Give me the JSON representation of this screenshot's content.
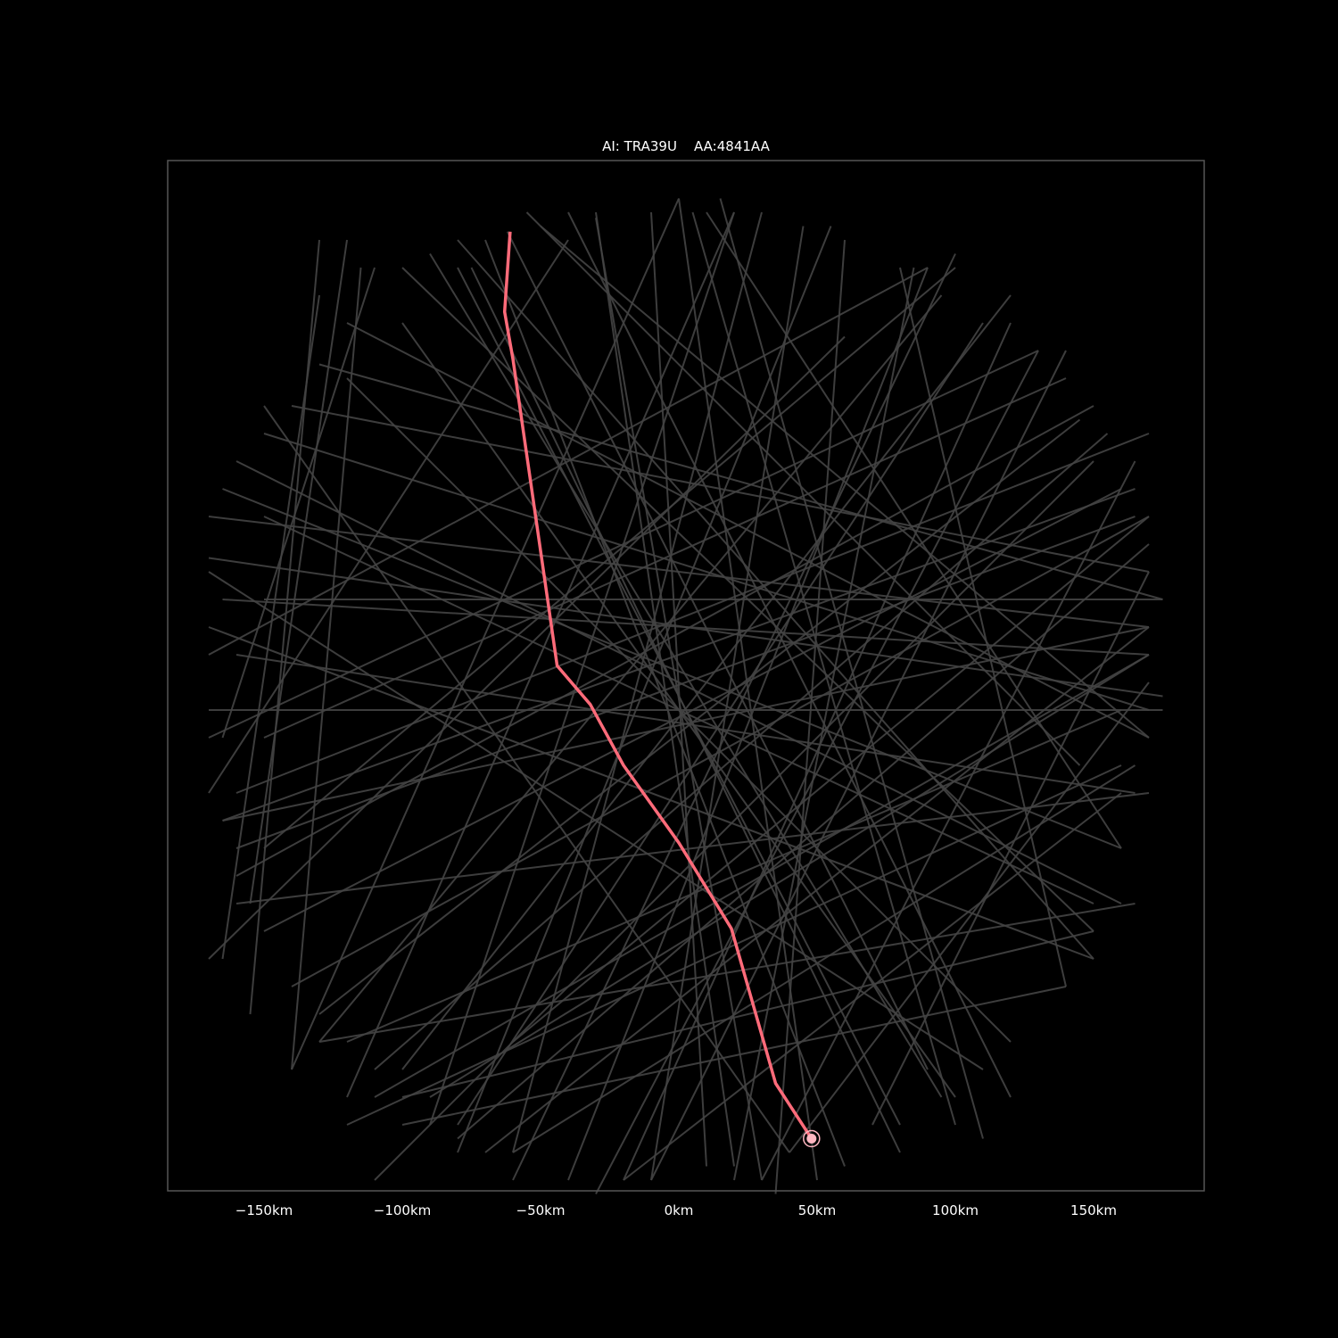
{
  "chart_data": {
    "type": "line",
    "title": "AI: TRA39U    AA:4841AA",
    "xlabel": "",
    "ylabel": "",
    "xlim": [
      -190,
      190
    ],
    "ylim": [
      -190,
      190
    ],
    "x_ticks": [
      {
        "value": -150,
        "label": "−150km"
      },
      {
        "value": -100,
        "label": "−100km"
      },
      {
        "value": -50,
        "label": "−50km"
      },
      {
        "value": 0,
        "label": "0km"
      },
      {
        "value": 50,
        "label": "50km"
      },
      {
        "value": 100,
        "label": "100km"
      },
      {
        "value": 150,
        "label": "150km"
      }
    ],
    "background_color": "#000000",
    "frame_color": "#555555",
    "other_tracks_color": "#444444",
    "highlight_color": "#ff6b7a",
    "marker_color": "#ffb6c1",
    "highlight_track": {
      "x": [
        -61,
        -63,
        -60,
        -44,
        -32,
        -20,
        0,
        19,
        35,
        48
      ],
      "y": [
        163,
        134,
        117,
        6,
        -8,
        -30,
        -58,
        -89,
        -145,
        -165
      ]
    },
    "current_position": {
      "x": 48,
      "y": -165
    },
    "other_tracks": [
      {
        "x": [
          -62,
          90
        ],
        "y": [
          163,
          -140
        ]
      },
      {
        "x": [
          -140,
          170
        ],
        "y": [
          100,
          40
        ]
      },
      {
        "x": [
          -150,
          175
        ],
        "y": [
          30,
          30
        ]
      },
      {
        "x": [
          -170,
          60
        ],
        "y": [
          -100,
          125
        ]
      },
      {
        "x": [
          -90,
          95
        ],
        "y": [
          155,
          -150
        ]
      },
      {
        "x": [
          -160,
          170
        ],
        "y": [
          -40,
          90
        ]
      },
      {
        "x": [
          -110,
          150
        ],
        "y": [
          -180,
          80
        ]
      },
      {
        "x": [
          -120,
          160
        ],
        "y": [
          -160,
          -30
        ]
      },
      {
        "x": [
          -100,
          100
        ],
        "y": [
          130,
          -150
        ]
      },
      {
        "x": [
          -10,
          10
        ],
        "y": [
          170,
          -175
        ]
      },
      {
        "x": [
          30,
          -60
        ],
        "y": [
          170,
          -170
        ]
      },
      {
        "x": [
          95,
          -130
        ],
        "y": [
          140,
          -130
        ]
      },
      {
        "x": [
          140,
          -150
        ],
        "y": [
          110,
          -20
        ]
      },
      {
        "x": [
          165,
          -160
        ],
        "y": [
          60,
          -60
        ]
      },
      {
        "x": [
          160,
          -120
        ],
        "y": [
          -10,
          -130
        ]
      },
      {
        "x": [
          -170,
          175
        ],
        "y": [
          -10,
          -10
        ]
      },
      {
        "x": [
          -160,
          160
        ],
        "y": [
          80,
          -80
        ]
      },
      {
        "x": [
          -155,
          -130
        ],
        "y": [
          -120,
          160
        ]
      },
      {
        "x": [
          -140,
          -115
        ],
        "y": [
          -140,
          150
        ]
      },
      {
        "x": [
          -165,
          -130
        ],
        "y": [
          -100,
          140
        ]
      },
      {
        "x": [
          -55,
          145
        ],
        "y": [
          170,
          -30
        ]
      },
      {
        "x": [
          -80,
          150
        ],
        "y": [
          160,
          -100
        ]
      },
      {
        "x": [
          0,
          50
        ],
        "y": [
          175,
          -180
        ]
      },
      {
        "x": [
          15,
          110
        ],
        "y": [
          175,
          -165
        ]
      },
      {
        "x": [
          -40,
          120
        ],
        "y": [
          170,
          -150
        ]
      },
      {
        "x": [
          60,
          35
        ],
        "y": [
          160,
          -185
        ]
      },
      {
        "x": [
          100,
          -60
        ],
        "y": [
          155,
          -180
        ]
      },
      {
        "x": [
          130,
          -30
        ],
        "y": [
          120,
          -185
        ]
      },
      {
        "x": [
          155,
          -110
        ],
        "y": [
          90,
          -140
        ]
      },
      {
        "x": [
          170,
          -80
        ],
        "y": [
          50,
          -165
        ]
      },
      {
        "x": [
          150,
          -100
        ],
        "y": [
          -90,
          -150
        ]
      },
      {
        "x": [
          170,
          -70
        ],
        "y": [
          20,
          -170
        ]
      },
      {
        "x": [
          -170,
          110
        ],
        "y": [
          40,
          -140
        ]
      },
      {
        "x": [
          -170,
          90
        ],
        "y": [
          10,
          150
        ]
      },
      {
        "x": [
          -150,
          100
        ],
        "y": [
          -60,
          150
        ]
      },
      {
        "x": [
          -120,
          20
        ],
        "y": [
          -150,
          170
        ]
      },
      {
        "x": [
          -130,
          175
        ],
        "y": [
          115,
          30
        ]
      },
      {
        "x": [
          -60,
          170
        ],
        "y": [
          -130,
          60
        ]
      },
      {
        "x": [
          -90,
          170
        ],
        "y": [
          -150,
          10
        ]
      },
      {
        "x": [
          -20,
          160
        ],
        "y": [
          -180,
          -40
        ]
      },
      {
        "x": [
          40,
          170
        ],
        "y": [
          -170,
          0
        ]
      },
      {
        "x": [
          -170,
          170
        ],
        "y": [
          60,
          20
        ]
      },
      {
        "x": [
          -165,
          165
        ],
        "y": [
          -50,
          70
        ]
      },
      {
        "x": [
          -100,
          120
        ],
        "y": [
          -140,
          140
        ]
      },
      {
        "x": [
          -75,
          80
        ],
        "y": [
          150,
          -170
        ]
      },
      {
        "x": [
          -30,
          30
        ],
        "y": [
          168,
          -180
        ]
      },
      {
        "x": [
          -150,
          40
        ],
        "y": [
          100,
          -170
        ]
      },
      {
        "x": [
          120,
          -20
        ],
        "y": [
          130,
          -180
        ]
      },
      {
        "x": [
          -160,
          170
        ],
        "y": [
          -80,
          -40
        ]
      },
      {
        "x": [
          -130,
          165
        ],
        "y": [
          -130,
          -80
        ]
      },
      {
        "x": [
          -100,
          140
        ],
        "y": [
          -160,
          -110
        ]
      },
      {
        "x": [
          -170,
          150
        ],
        "y": [
          20,
          -100
        ]
      },
      {
        "x": [
          -165,
          160
        ],
        "y": [
          70,
          -60
        ]
      },
      {
        "x": [
          -120,
          170
        ],
        "y": [
          130,
          -20
        ]
      },
      {
        "x": [
          -50,
          170
        ],
        "y": [
          165,
          -20
        ]
      },
      {
        "x": [
          10,
          160
        ],
        "y": [
          170,
          -60
        ]
      },
      {
        "x": [
          80,
          140
        ],
        "y": [
          150,
          -110
        ]
      },
      {
        "x": [
          -170,
          -40
        ],
        "y": [
          -40,
          160
        ]
      },
      {
        "x": [
          -140,
          0
        ],
        "y": [
          -140,
          175
        ]
      },
      {
        "x": [
          -80,
          55
        ],
        "y": [
          -170,
          165
        ]
      },
      {
        "x": [
          -40,
          90
        ],
        "y": [
          -180,
          150
        ]
      },
      {
        "x": [
          -10,
          140
        ],
        "y": [
          -180,
          120
        ]
      },
      {
        "x": [
          30,
          165
        ],
        "y": [
          -180,
          80
        ]
      },
      {
        "x": [
          70,
          170
        ],
        "y": [
          -160,
          40
        ]
      },
      {
        "x": [
          -170,
          130
        ],
        "y": [
          -20,
          120
        ]
      },
      {
        "x": [
          -160,
          150
        ],
        "y": [
          -70,
          100
        ]
      },
      {
        "x": [
          -140,
          170
        ],
        "y": [
          -110,
          60
        ]
      },
      {
        "x": [
          -110,
          170
        ],
        "y": [
          -150,
          10
        ]
      },
      {
        "x": [
          -60,
          165
        ],
        "y": [
          -170,
          -30
        ]
      },
      {
        "x": [
          -155,
          -120
        ],
        "y": [
          -80,
          160
        ]
      },
      {
        "x": [
          -165,
          -110
        ],
        "y": [
          -20,
          150
        ]
      },
      {
        "x": [
          -170,
          175
        ],
        "y": [
          45,
          -5
        ]
      },
      {
        "x": [
          -165,
          170
        ],
        "y": [
          30,
          10
        ]
      },
      {
        "x": [
          -150,
          170
        ],
        "y": [
          90,
          -10
        ]
      },
      {
        "x": [
          -100,
          150
        ],
        "y": [
          150,
          -90
        ]
      },
      {
        "x": [
          -70,
          60
        ],
        "y": [
          160,
          -175
        ]
      },
      {
        "x": [
          5,
          100
        ],
        "y": [
          170,
          -160
        ]
      },
      {
        "x": [
          20,
          -90
        ],
        "y": [
          170,
          -160
        ]
      },
      {
        "x": [
          45,
          -10
        ],
        "y": [
          165,
          -180
        ]
      },
      {
        "x": [
          85,
          20
        ],
        "y": [
          150,
          -180
        ]
      },
      {
        "x": [
          110,
          -80
        ],
        "y": [
          130,
          -160
        ]
      },
      {
        "x": [
          145,
          -130
        ],
        "y": [
          95,
          -120
        ]
      },
      {
        "x": [
          160,
          -150
        ],
        "y": [
          70,
          -90
        ]
      },
      {
        "x": [
          170,
          -165
        ],
        "y": [
          20,
          -50
        ]
      },
      {
        "x": [
          165,
          -160
        ],
        "y": [
          -40,
          10
        ]
      },
      {
        "x": [
          150,
          -150
        ],
        "y": [
          -80,
          60
        ]
      },
      {
        "x": [
          120,
          -120
        ],
        "y": [
          -130,
          110
        ]
      },
      {
        "x": [
          80,
          -80
        ],
        "y": [
          -160,
          150
        ]
      },
      {
        "x": [
          20,
          -30
        ],
        "y": [
          -175,
          170
        ]
      }
    ]
  }
}
